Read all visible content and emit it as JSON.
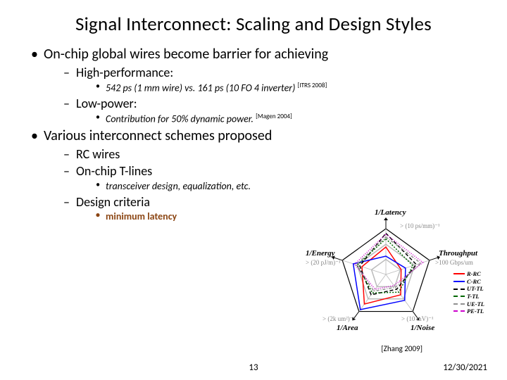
{
  "title": "Signal Interconnect: Scaling and Design Styles",
  "bullets": {
    "b1": "On-chip global wires become barrier for achieving",
    "b1a": "High-performance:",
    "b1a1_pre": "542 ps (1 mm wire) vs. 161 ps (10 FO 4 inverter)",
    "b1a1_cite": "[ITRS 2008]",
    "b1b": "Low-power:",
    "b1b1_pre": "Contribution for 50% dynamic power.",
    "b1b1_cite": "[Magen 2004]",
    "b2": "Various interconnect schemes proposed",
    "b2a": "RC wires",
    "b2b": "On-chip T-lines",
    "b2b1": "transceiver design, equalization, etc.",
    "b2c": "Design criteria",
    "b2c1": "minimum latency"
  },
  "diagram": {
    "axes": {
      "latency": "1/Latency",
      "throughput": "Throughput",
      "noise": "1/Noise",
      "area": "1/Area",
      "energy": "1/Energy"
    },
    "gray": {
      "latency": "> (10 ps/mm)⁻¹",
      "throughput": ">100 Gbps/um",
      "noise": "> (10 mV)⁻¹",
      "area": "> (2k um²)⁻¹",
      "energy": "> (20 pJ/m)⁻¹"
    },
    "pentagon_color": "#000000",
    "inner_color": "#bbbbbb",
    "series": [
      {
        "name": "R-RC",
        "color": "#ff0000",
        "dash": "",
        "vals": [
          0.6,
          0.35,
          0.55,
          0.8,
          0.55
        ]
      },
      {
        "name": "C-RC",
        "color": "#0000ff",
        "dash": "",
        "vals": [
          0.4,
          0.45,
          0.7,
          0.95,
          0.75
        ]
      },
      {
        "name": "UT-TL",
        "color": "#000000",
        "dash": "5,3",
        "vals": [
          0.9,
          0.7,
          0.4,
          0.55,
          0.6
        ]
      },
      {
        "name": "T-TL",
        "color": "#006600",
        "dash": "2,2",
        "vals": [
          0.78,
          0.62,
          0.48,
          0.5,
          0.66
        ]
      },
      {
        "name": "UE-TL",
        "color": "#909090",
        "dash": "4,2,1,2",
        "vals": [
          0.82,
          0.8,
          0.35,
          0.45,
          0.68
        ]
      },
      {
        "name": "PE-TL",
        "color": "#cc00cc",
        "dash": "1,2",
        "vals": [
          0.88,
          0.85,
          0.3,
          0.4,
          0.72
        ]
      }
    ]
  },
  "footer": {
    "cite": "[Zhang 2009]",
    "page": "13",
    "date": "12/30/2021"
  }
}
